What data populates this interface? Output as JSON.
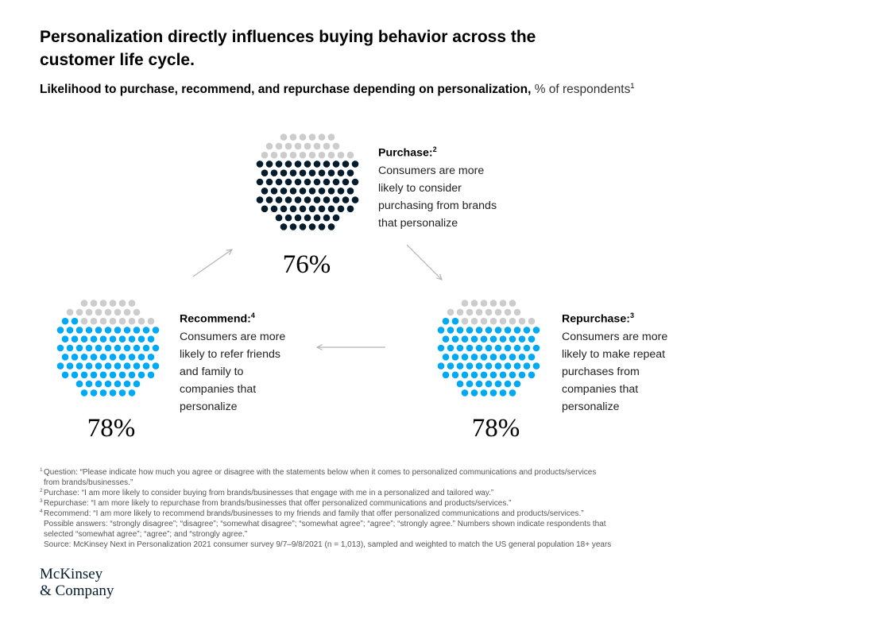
{
  "title": "Personalization directly influences buying behavior across the customer life cycle.",
  "subtitle": {
    "lead": "Likelihood to purchase, recommend, and repurchase depending on personalization,",
    "unit": "% of respondents",
    "note": "1"
  },
  "chart_data": {
    "type": "dot-matrix",
    "unit": "% of respondents",
    "items": [
      {
        "name": "Purchase",
        "note": "2",
        "value": 76,
        "label": "76%",
        "color": "#051c2c",
        "description": [
          "Consumers are more",
          "likely to consider",
          "purchasing from brands",
          "that personalize"
        ]
      },
      {
        "name": "Repurchase",
        "note": "3",
        "value": 78,
        "label": "78%",
        "color": "#00a9f4",
        "description": [
          "Consumers are more",
          "likely to make repeat",
          "purchases from",
          "companies that",
          "personalize"
        ]
      },
      {
        "name": "Recommend",
        "note": "4",
        "value": 78,
        "label": "78%",
        "color": "#00a9f4",
        "description": [
          "Consumers are more",
          "likely to refer friends",
          "and family to",
          "companies that",
          "personalize"
        ]
      }
    ],
    "remainder_color": "#cccccc"
  },
  "footnotes": [
    {
      "num": "1",
      "lines": [
        "Question: “Please indicate how much you agree or disagree with the statements below when it comes to personalized communications and products/services",
        "from brands/businesses.”"
      ]
    },
    {
      "num": "2",
      "lines": [
        "Purchase: “I am more likely to consider buying from brands/businesses that engage with me in a personalized and tailored way.”"
      ]
    },
    {
      "num": "3",
      "lines": [
        "Repurchase: “I am more likely to repurchase from brands/businesses that offer personalized communications and products/services.”"
      ]
    },
    {
      "num": "4",
      "lines": [
        "Recommend: “I am more likely to recommend brands/businesses to my friends and family that offer personalized communications and products/services.”",
        "Possible answers: “strongly disagree”; “disagree”; “somewhat disagree”; “somewhat agree”; “agree”; “strongly agree.” Numbers shown indicate respondents that",
        "selected “somewhat agree”; “agree”; and “strongly agree.”"
      ]
    },
    {
      "num": "",
      "lines": [
        "Source: McKinsey Next in Personalization 2021 consumer survey 9/7–9/8/2021 (n = 1,013), sampled and weighted to match the US general population 18+ years"
      ]
    }
  ],
  "logo": [
    "McKinsey",
    "& Company"
  ]
}
